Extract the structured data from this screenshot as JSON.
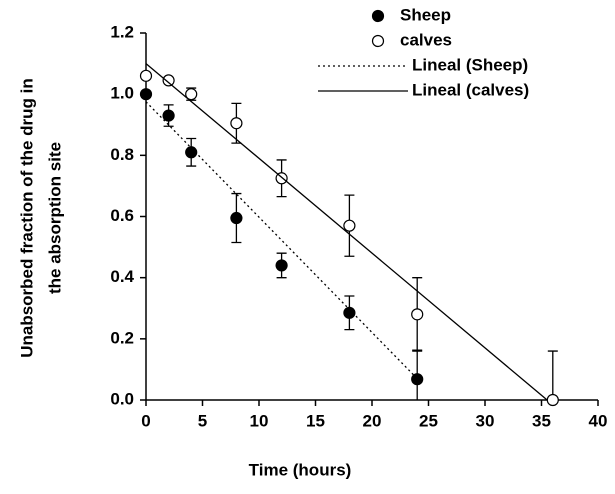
{
  "chart_data": {
    "type": "scatter",
    "x_label": "Time (hours)",
    "y_label": [
      "Unabsorbed fraction of the drug in",
      "the absorption site"
    ],
    "xlim": [
      0,
      40
    ],
    "xticks": [
      0,
      5,
      10,
      15,
      20,
      25,
      30,
      35,
      40
    ],
    "ylim": [
      0,
      1.2
    ],
    "yticks": [
      {
        "value": 0,
        "label": "0.0"
      },
      0.2,
      0.4,
      0.6,
      0.8,
      {
        "value": 1,
        "label": "1.0"
      },
      1.2
    ],
    "series": [
      {
        "name": "Sheep",
        "color": "#000000",
        "marker": "filled",
        "x": [
          0,
          2,
          4,
          8,
          12,
          18,
          24
        ],
        "values": [
          1.0,
          0.93,
          0.81,
          0.595,
          0.44,
          0.285,
          0.068
        ],
        "errors": [
          0.01,
          0.035,
          0.045,
          0.08,
          0.04,
          0.055,
          0.095
        ]
      },
      {
        "name": "calves",
        "color": "#000000",
        "marker": "open",
        "x": [
          0,
          2,
          4,
          8,
          12,
          18,
          24,
          36
        ],
        "values": [
          1.06,
          1.045,
          1.0,
          0.905,
          0.725,
          0.57,
          0.28,
          0.0
        ],
        "errors": [
          0.01,
          0.01,
          0.02,
          0.065,
          0.06,
          0.1,
          0.12,
          0.16
        ]
      },
      {
        "name": "Lineal (Sheep)",
        "color": "#000000",
        "line": "dotted",
        "x": [
          0,
          24
        ],
        "values": [
          0.975,
          0.07
        ]
      },
      {
        "name": "Lineal (calves)",
        "color": "#000000",
        "line": "solid",
        "x": [
          0,
          35.5
        ],
        "values": [
          1.1,
          0
        ]
      }
    ]
  }
}
